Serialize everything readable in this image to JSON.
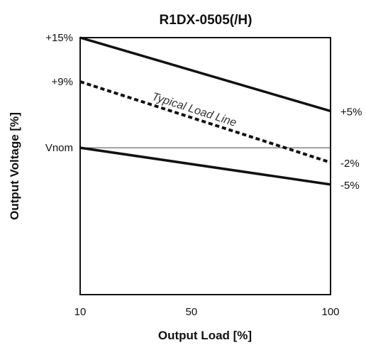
{
  "chart_data": {
    "type": "line",
    "title": "R1DX-0505(/H)",
    "xlabel": "Output Load [%]",
    "ylabel": "Output Voltage [%]",
    "x_ticks": [
      {
        "value": 10,
        "label": "10"
      },
      {
        "value": 50,
        "label": "50"
      },
      {
        "value": 100,
        "label": "100"
      }
    ],
    "xlim": [
      10,
      100
    ],
    "ylim": [
      -20,
      15
    ],
    "y_left_labels": [
      {
        "value": 15,
        "label": "+15%"
      },
      {
        "value": 9,
        "label": "+9%"
      },
      {
        "value": 0,
        "label": "Vnom"
      }
    ],
    "y_right_labels": [
      {
        "value": 5,
        "label": "+5%"
      },
      {
        "value": -2,
        "label": "-2%"
      },
      {
        "value": -5,
        "label": "-5%"
      }
    ],
    "series": [
      {
        "style": "solid",
        "x": [
          10,
          100
        ],
        "y": [
          15,
          5
        ]
      },
      {
        "name": "Typical Load Line",
        "style": "dotted",
        "x": [
          10,
          100
        ],
        "y": [
          9,
          -2
        ]
      },
      {
        "style": "solid",
        "x": [
          10,
          100
        ],
        "y": [
          0,
          -5
        ]
      }
    ],
    "reference_lines": [
      {
        "y": 0,
        "style": "thin"
      }
    ],
    "grid": false,
    "legend": "none"
  }
}
